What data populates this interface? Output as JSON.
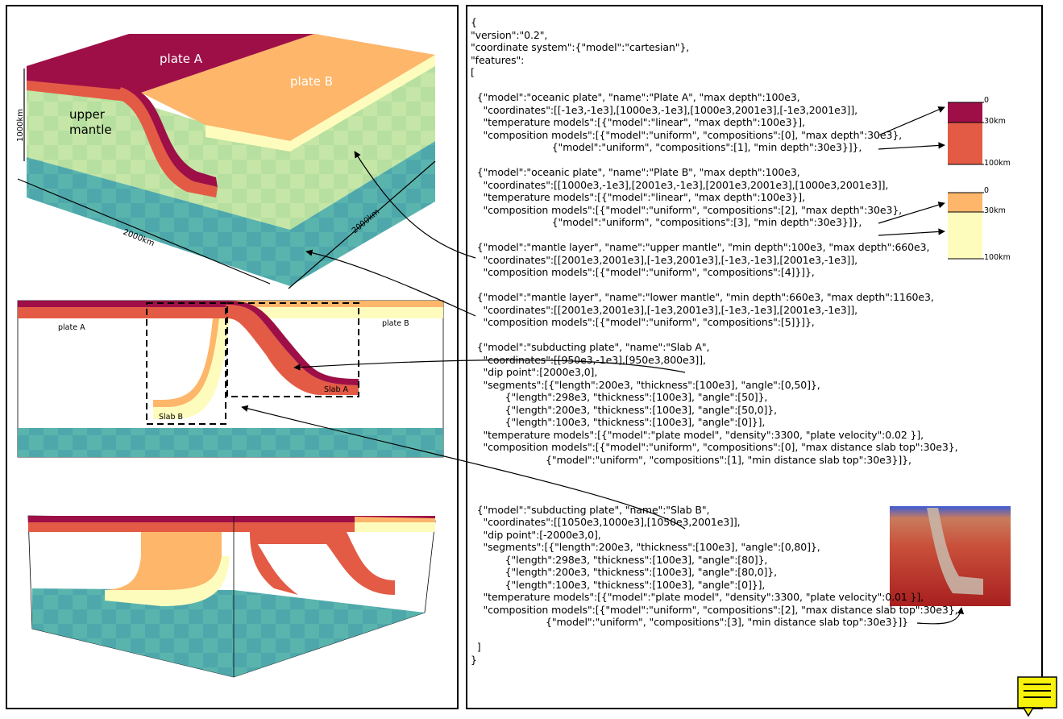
{
  "block1": {
    "plate_a": "plate A",
    "plate_b": "plate B",
    "upper": "upper",
    "mantle": "mantle",
    "dim_vertical": "1000km",
    "dim_front": "2000km",
    "dim_side": "2000km"
  },
  "block2": {
    "plate_a": "plate A",
    "plate_b": "plate B",
    "slab_a": "Slab A",
    "slab_b": "Slab B"
  },
  "bars": {
    "a_top": "0",
    "a_mid": "30km",
    "a_bottom": "100km",
    "b_top": "0",
    "b_mid": "30km",
    "b_bottom": "100km"
  },
  "code": [
    "{",
    "\"version\":\"0.2\",",
    "\"coordinate system\":{\"model\":\"cartesian\"},",
    "\"features\":",
    "[",
    "",
    "  {\"model\":\"oceanic plate\", \"name\":\"Plate A\", \"max depth\":100e3,",
    "    \"coordinates\":[[-1e3,-1e3],[1000e3,-1e3],[1000e3,2001e3],[-1e3,2001e3]],",
    "    \"temperature models\":[{\"model\":\"linear\", \"max depth\":100e3}],",
    "    \"composition models\":[{\"model\":\"uniform\", \"compositions\":[0], \"max depth\":30e3},",
    "                          {\"model\":\"uniform\", \"compositions\":[1], \"min depth\":30e3}]},",
    "",
    "  {\"model\":\"oceanic plate\", \"name\":\"Plate B\", \"max depth\":100e3,",
    "    \"coordinates\":[[1000e3,-1e3],[2001e3,-1e3],[2001e3,2001e3],[1000e3,2001e3]],",
    "    \"temperature models\":[{\"model\":\"linear\", \"max depth\":100e3}],",
    "    \"composition models\":[{\"model\":\"uniform\", \"compositions\":[2], \"max depth\":30e3},",
    "                          {\"model\":\"uniform\", \"compositions\":[3], \"min depth\":30e3}]},",
    "",
    "  {\"model\":\"mantle layer\", \"name\":\"upper mantle\", \"min depth\":100e3, \"max depth\":660e3,",
    "    \"coordinates\":[[2001e3,2001e3],[-1e3,2001e3],[-1e3,-1e3],[2001e3,-1e3]],",
    "    \"composition models\":[{\"model\":\"uniform\", \"compositions\":[4]}]},",
    "",
    "  {\"model\":\"mantle layer\", \"name\":\"lower mantle\", \"min depth\":660e3, \"max depth\":1160e3,",
    "    \"coordinates\":[[2001e3,2001e3],[-1e3,2001e3],[-1e3,-1e3],[2001e3,-1e3]],",
    "    \"composition models\":[{\"model\":\"uniform\", \"compositions\":[5]}]},",
    "",
    "  {\"model\":\"subducting plate\", \"name\":\"Slab A\",",
    "    \"coordinates\":[[950e3,-1e3],[950e3,800e3]],",
    "    \"dip point\":[2000e3,0],",
    "    \"segments\":[{\"length\":200e3, \"thickness\":[100e3], \"angle\":[0,50]},",
    "           {\"length\":298e3, \"thickness\":[100e3], \"angle\":[50]},",
    "           {\"length\":200e3, \"thickness\":[100e3], \"angle\":[50,0]},",
    "           {\"length\":100e3, \"thickness\":[100e3], \"angle\":[0]}],",
    "    \"temperature models\":[{\"model\":\"plate model\", \"density\":3300, \"plate velocity\":0.02 }],",
    "    \"composition models\":[{\"model\":\"uniform\", \"compositions\":[0], \"max distance slab top\":30e3},",
    "                        {\"model\":\"uniform\", \"compositions\":[1], \"min distance slab top\":30e3}]},",
    "",
    "",
    "",
    "  {\"model\":\"subducting plate\", \"name\":\"Slab B\",",
    "    \"coordinates\":[[1050e3,1000e3],[1050e3,2001e3]],",
    "    \"dip point\":[-2000e3,0],",
    "    \"segments\":[{\"length\":200e3, \"thickness\":[100e3], \"angle\":[0,80]},",
    "           {\"length\":298e3, \"thickness\":[100e3], \"angle\":[80]},",
    "           {\"length\":200e3, \"thickness\":[100e3], \"angle\":[80,0]},",
    "           {\"length\":100e3, \"thickness\":[100e3], \"angle\":[0]}],",
    "    \"temperature models\":[{\"model\":\"plate model\", \"density\":3300, \"plate velocity\":0.01 }],",
    "    \"composition models\":[{\"model\":\"uniform\", \"compositions\":[2], \"max distance slab top\":30e3},",
    "                        {\"model\":\"uniform\", \"compositions\":[3], \"min distance slab top\":30e3}]}",
    "",
    "  ]",
    "}"
  ],
  "colors": {
    "plate_a_crust": "#9e0f47",
    "plate_a_lith": "#e35b45",
    "plate_b_crust": "#fdb66a",
    "plate_b_lith": "#fefcbd",
    "upper_mantle": "#b6dfa0",
    "lower_mantle": "#4ea8ab",
    "note_icon": "#f7f20c"
  }
}
